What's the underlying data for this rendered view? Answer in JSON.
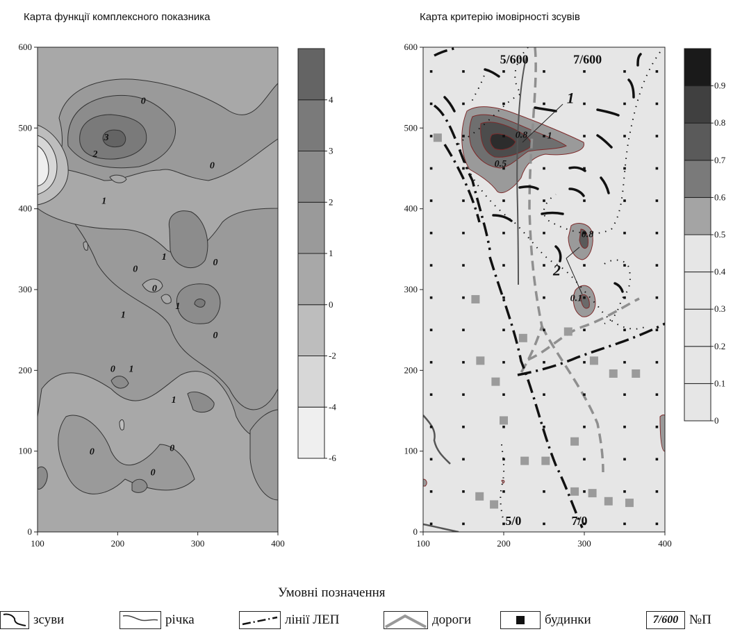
{
  "left_chart_title": "Карта функції комплексного показника",
  "right_chart_title": "Карта критерію імовірності зсувів",
  "legend": {
    "title": "Умовні позначення",
    "items": [
      {
        "label": "зсуви"
      },
      {
        "label": "річка"
      },
      {
        "label": "лінії ЛЕП"
      },
      {
        "label": "дороги"
      },
      {
        "label": "будинки"
      },
      {
        "swatch_text": "7/600",
        "label": "№П"
      }
    ]
  },
  "colors": {
    "left_scale": [
      "#efefef",
      "#d7d7d7",
      "#bdbdbd",
      "#a8a8a8",
      "#9a9a9a",
      "#8c8c8c",
      "#7a7a7a",
      "#646464"
    ],
    "right_scale": [
      "#e6e6e6",
      "#e6e6e6",
      "#e6e6e6",
      "#e6e6e6",
      "#e6e6e6",
      "#a4a4a4",
      "#7a7a7a",
      "#5a5a5a",
      "#404040",
      "#1a1a1a"
    ],
    "road": "#8f8f8f",
    "house": "#9b9b9b"
  },
  "chart_data": [
    {
      "type": "heatmap",
      "title": "Карта функції комплексного показника",
      "x_ticks": [
        100,
        200,
        300,
        400
      ],
      "y_ticks": [
        0,
        100,
        200,
        300,
        400,
        500,
        600
      ],
      "xlim": [
        100,
        400
      ],
      "ylim": [
        0,
        600
      ],
      "colorbar_ticks": [
        -6,
        -4,
        -2,
        0,
        1,
        2,
        3,
        4
      ],
      "contour_labels": [
        {
          "text": "0",
          "x": 232,
          "y": 530
        },
        {
          "text": "3",
          "x": 186,
          "y": 485
        },
        {
          "text": "2",
          "x": 172,
          "y": 464
        },
        {
          "text": "0",
          "x": 318,
          "y": 450
        },
        {
          "text": "1",
          "x": 183,
          "y": 406
        },
        {
          "text": "1",
          "x": 258,
          "y": 337
        },
        {
          "text": "0",
          "x": 322,
          "y": 330
        },
        {
          "text": "0",
          "x": 222,
          "y": 322
        },
        {
          "text": "0",
          "x": 246,
          "y": 298
        },
        {
          "text": "1",
          "x": 275,
          "y": 276
        },
        {
          "text": "1",
          "x": 207,
          "y": 265
        },
        {
          "text": "0",
          "x": 322,
          "y": 240
        },
        {
          "text": "0",
          "x": 194,
          "y": 198
        },
        {
          "text": "1",
          "x": 217,
          "y": 198
        },
        {
          "text": "1",
          "x": 270,
          "y": 160
        },
        {
          "text": "0",
          "x": 268,
          "y": 100
        },
        {
          "text": "0",
          "x": 168,
          "y": 96
        },
        {
          "text": "0",
          "x": 244,
          "y": 70
        }
      ]
    },
    {
      "type": "heatmap",
      "title": "Карта критерію імовірності зсувів",
      "x_ticks": [
        100,
        200,
        300,
        400
      ],
      "y_ticks": [
        0,
        100,
        200,
        300,
        400,
        500,
        600
      ],
      "xlim": [
        100,
        400
      ],
      "ylim": [
        0,
        600
      ],
      "colorbar_ticks": [
        0,
        0.1,
        0.2,
        0.3,
        0.4,
        0.5,
        0.6,
        0.7,
        0.8,
        0.9
      ],
      "contour_labels": [
        {
          "text": "0.8",
          "x": 222,
          "y": 488
        },
        {
          "text": "0.5",
          "x": 196,
          "y": 452
        },
        {
          "text": "1",
          "x": 257,
          "y": 487
        },
        {
          "text": "0.8",
          "x": 304,
          "y": 365
        },
        {
          "text": "0.1",
          "x": 290,
          "y": 286
        }
      ],
      "annotations": [
        {
          "text": "5/600",
          "x": 213,
          "y": 584
        },
        {
          "text": "7/600",
          "x": 304,
          "y": 584
        },
        {
          "text": "5/0",
          "x": 212,
          "y": 13
        },
        {
          "text": "7/0",
          "x": 294,
          "y": 13
        },
        {
          "text": "1",
          "x": 283,
          "y": 535
        },
        {
          "text": "2",
          "x": 266,
          "y": 322
        }
      ],
      "houses": [
        [
          118,
          488
        ],
        [
          165,
          288
        ],
        [
          171,
          212
        ],
        [
          190,
          186
        ],
        [
          200,
          138
        ],
        [
          224,
          240
        ],
        [
          280,
          248
        ],
        [
          312,
          212
        ],
        [
          336,
          196
        ],
        [
          364,
          196
        ],
        [
          252,
          88
        ],
        [
          226,
          88
        ],
        [
          288,
          112
        ],
        [
          170,
          44
        ],
        [
          188,
          34
        ],
        [
          288,
          50
        ],
        [
          310,
          48
        ],
        [
          330,
          38
        ],
        [
          356,
          36
        ]
      ]
    }
  ]
}
